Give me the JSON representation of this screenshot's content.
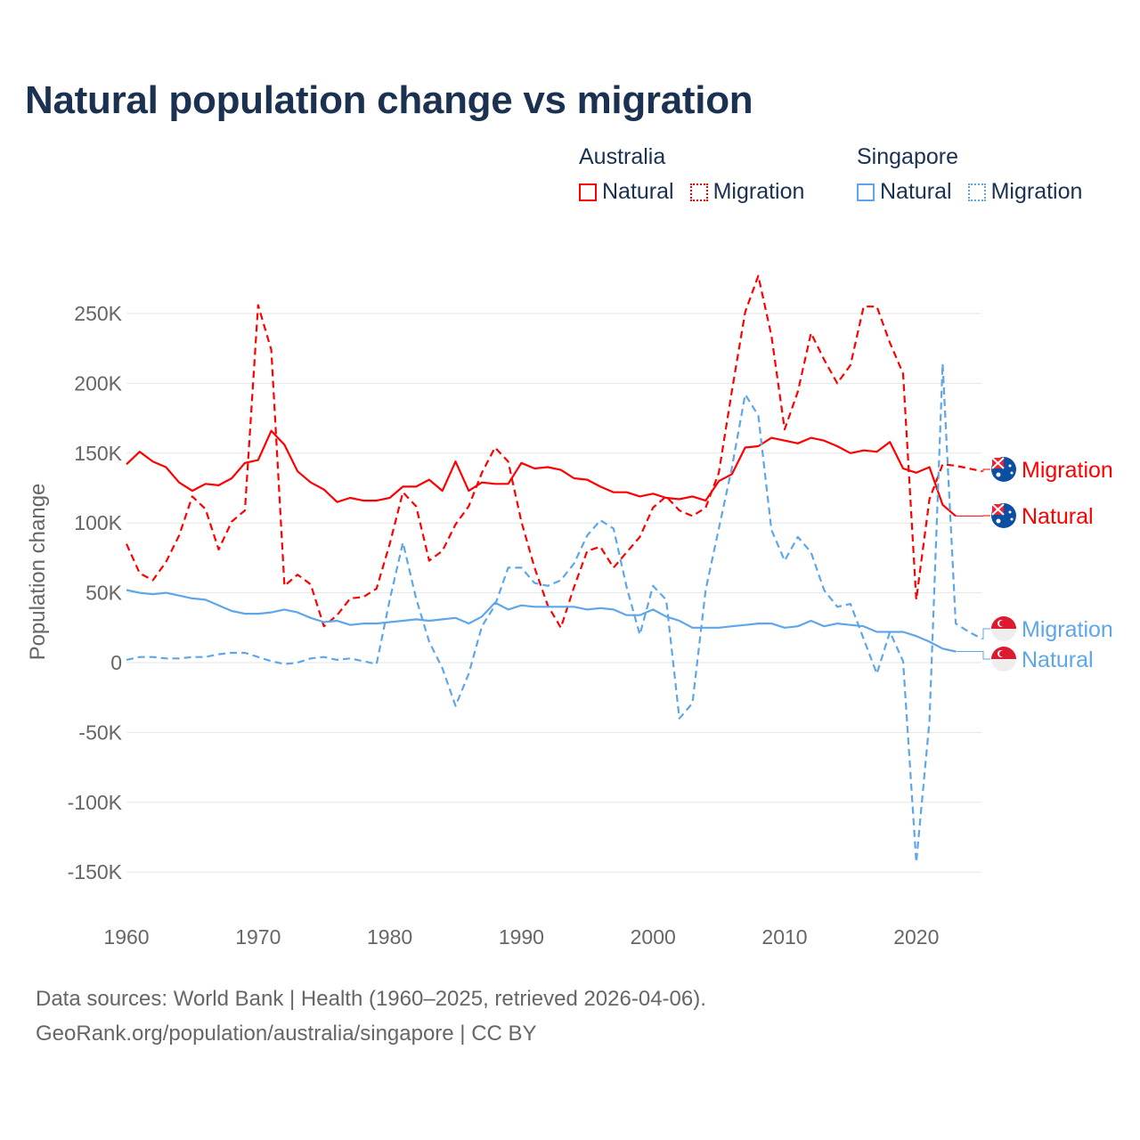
{
  "chart_data": {
    "type": "line",
    "title": "Natural population change vs migration",
    "xlabel": "",
    "ylabel": "Population change",
    "xlim": [
      1960,
      2025
    ],
    "ylim": [
      -150000,
      280000
    ],
    "x_ticks": [
      1960,
      1970,
      1980,
      1990,
      2000,
      2010,
      2020
    ],
    "x_tick_labels": [
      "1960",
      "1970",
      "1980",
      "1990",
      "2000",
      "2010",
      "2020"
    ],
    "y_ticks": [
      250000,
      200000,
      150000,
      100000,
      50000,
      0,
      -50000,
      -100000,
      -150000
    ],
    "y_tick_labels": [
      "250K",
      "200K",
      "150K",
      "100K",
      "50K",
      "0",
      "-50K",
      "-100K",
      "-150K"
    ],
    "grid": true,
    "legend_position": "top-right",
    "legend_groups": [
      {
        "country": "Australia",
        "items": [
          "Natural",
          "Migration"
        ]
      },
      {
        "country": "Singapore",
        "items": [
          "Natural",
          "Migration"
        ]
      }
    ],
    "series": [
      {
        "name": "Australia Natural",
        "country": "Australia",
        "kind": "Natural",
        "label": "Natural",
        "color": "#ff0000",
        "dashed": false,
        "start_year": 1960,
        "values": [
          142000,
          151000,
          144000,
          140000,
          129000,
          123000,
          128000,
          127000,
          132000,
          143000,
          145000,
          166000,
          156000,
          137000,
          129000,
          124000,
          115000,
          118000,
          116000,
          116000,
          118000,
          126000,
          126000,
          131000,
          123000,
          144000,
          123000,
          129000,
          128000,
          128000,
          143000,
          139000,
          140000,
          138000,
          132000,
          131000,
          126000,
          122000,
          122000,
          119000,
          121000,
          118000,
          117000,
          119000,
          116000,
          130000,
          135000,
          154000,
          155000,
          161000,
          159000,
          157000,
          161000,
          159000,
          155000,
          150000,
          152000,
          151000,
          158000,
          139000,
          136000,
          140000,
          113000,
          105000
        ]
      },
      {
        "name": "Australia Migration",
        "country": "Australia",
        "kind": "Migration",
        "label": "Migration",
        "color": "#ff0000",
        "dashed": true,
        "start_year": 1960,
        "values": [
          85000,
          64000,
          59000,
          72000,
          91000,
          119000,
          110000,
          81000,
          101000,
          109000,
          256000,
          224000,
          55000,
          63000,
          56000,
          26000,
          34000,
          46000,
          47000,
          53000,
          85000,
          122000,
          112000,
          73000,
          80000,
          99000,
          112000,
          136000,
          154000,
          144000,
          101000,
          68000,
          41000,
          25000,
          54000,
          80000,
          83000,
          68000,
          79000,
          90000,
          111000,
          119000,
          109000,
          105000,
          111000,
          136000,
          195000,
          251000,
          277000,
          234000,
          167000,
          194000,
          236000,
          217000,
          200000,
          213000,
          255000,
          255000,
          229000,
          207000,
          45000,
          117000,
          142000,
          141000,
          139000,
          137000
        ]
      },
      {
        "name": "Singapore Natural",
        "country": "Singapore",
        "kind": "Natural",
        "label": "Natural",
        "color": "#5ea6ea",
        "dashed": false,
        "start_year": 1960,
        "values": [
          52000,
          50000,
          49000,
          50000,
          48000,
          46000,
          45000,
          41000,
          37000,
          35000,
          35000,
          36000,
          38000,
          36000,
          32000,
          29000,
          30000,
          27000,
          28000,
          28000,
          29000,
          30000,
          31000,
          30000,
          31000,
          32000,
          28000,
          33000,
          43000,
          38000,
          41000,
          40000,
          40000,
          40000,
          40000,
          38000,
          39000,
          38000,
          34000,
          34000,
          38000,
          33000,
          30000,
          25000,
          25000,
          25000,
          26000,
          27000,
          28000,
          28000,
          25000,
          26000,
          30000,
          26000,
          28000,
          27000,
          26000,
          22000,
          22000,
          22000,
          19000,
          15000,
          10000,
          8000
        ]
      },
      {
        "name": "Singapore Migration",
        "country": "Singapore",
        "kind": "Migration",
        "label": "Migration",
        "color": "#5ea6ea",
        "dashed": true,
        "start_year": 1960,
        "values": [
          2000,
          4000,
          4000,
          3000,
          3000,
          4000,
          4000,
          6000,
          7000,
          7000,
          4000,
          1000,
          -1000,
          0,
          3000,
          4000,
          2000,
          3000,
          1000,
          -1000,
          45000,
          86000,
          46000,
          15000,
          -4000,
          -31000,
          -8000,
          26000,
          41000,
          68000,
          68000,
          57000,
          55000,
          59000,
          71000,
          91000,
          102000,
          96000,
          54000,
          20000,
          55000,
          45000,
          -40000,
          -29000,
          52000,
          96000,
          140000,
          192000,
          177000,
          95000,
          73000,
          90000,
          79000,
          52000,
          40000,
          42000,
          17000,
          -8000,
          22000,
          1000,
          -143000,
          -42000,
          214000,
          28000,
          22000,
          17000
        ]
      }
    ],
    "end_labels": [
      {
        "series": "Australia Migration",
        "text": "Migration",
        "flag": "australia-flag"
      },
      {
        "series": "Australia Natural",
        "text": "Natural",
        "flag": "australia-flag"
      },
      {
        "series": "Singapore Migration",
        "text": "Migration",
        "flag": "singapore-flag"
      },
      {
        "series": "Singapore Natural",
        "text": "Natural",
        "flag": "singapore-flag"
      }
    ]
  },
  "footer": {
    "source": "Data sources: World Bank | Health (1960–2025, retrieved 2026-04-06).",
    "credit": "GeoRank.org/population/australia/singapore | CC BY"
  }
}
